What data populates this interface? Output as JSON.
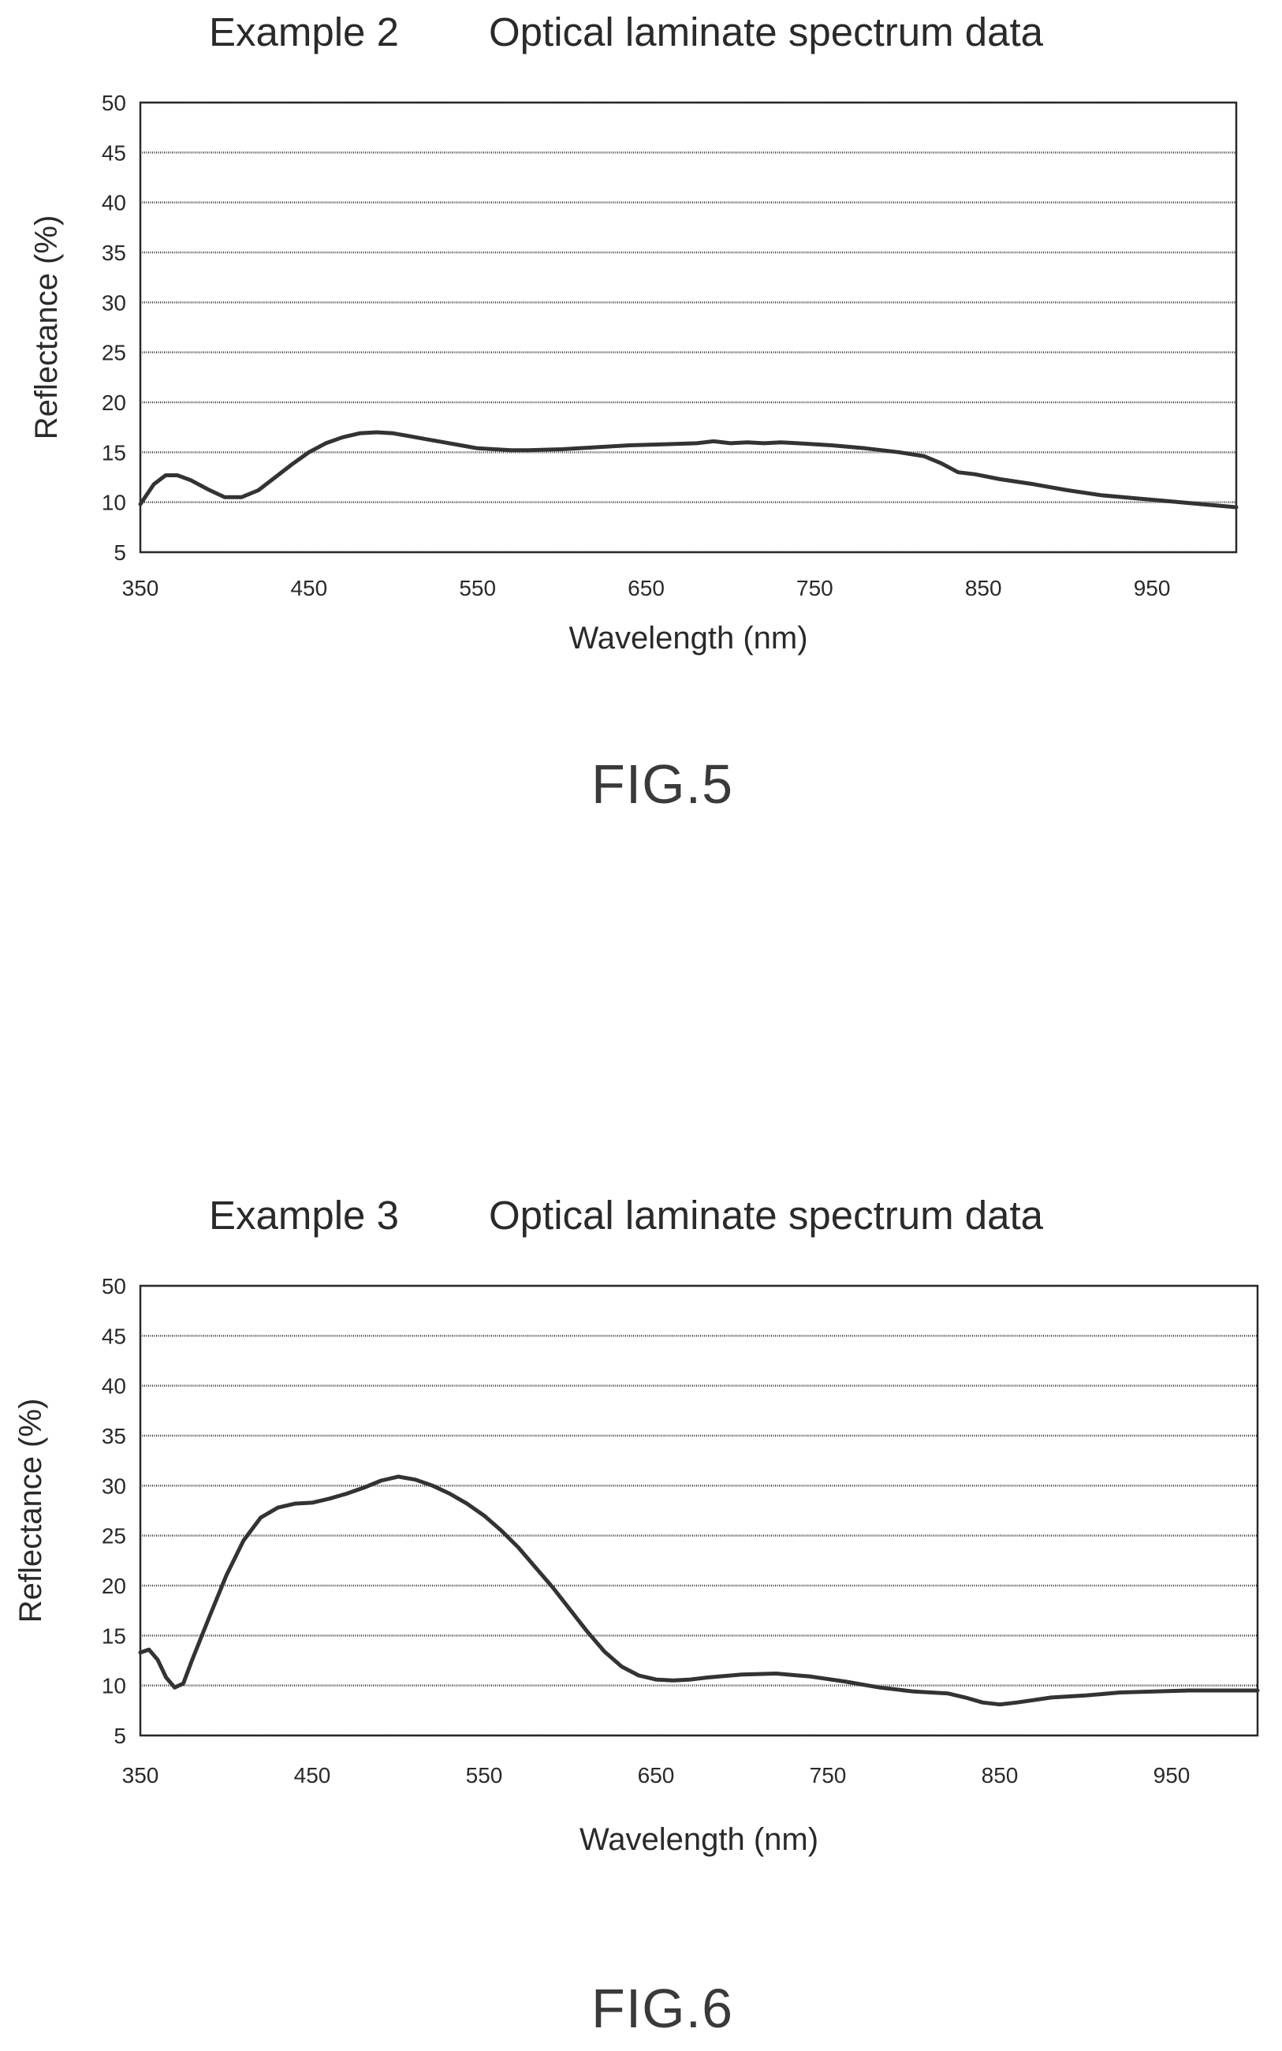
{
  "chart_data": [
    {
      "type": "line",
      "title_left": "Example 2",
      "title_right": "Optical laminate spectrum data",
      "xlabel": "Wavelength (nm)",
      "ylabel": "Reflectance (%)",
      "figure_label": "FIG.5",
      "xlim": [
        350,
        1000
      ],
      "ylim": [
        5,
        50
      ],
      "x_ticks": [
        350,
        450,
        550,
        650,
        750,
        850,
        950
      ],
      "y_ticks": [
        5,
        10,
        15,
        20,
        25,
        30,
        35,
        40,
        45,
        50
      ],
      "grid": true,
      "series": [
        {
          "x": [
            350,
            358,
            365,
            372,
            380,
            390,
            400,
            410,
            420,
            430,
            440,
            450,
            460,
            470,
            480,
            490,
            500,
            510,
            520,
            530,
            540,
            550,
            560,
            570,
            580,
            600,
            620,
            640,
            660,
            680,
            690,
            700,
            710,
            720,
            730,
            740,
            760,
            780,
            800,
            815,
            825,
            835,
            845,
            860,
            880,
            900,
            920,
            940,
            960,
            980,
            1000
          ],
          "y": [
            9.8,
            11.8,
            12.7,
            12.7,
            12.2,
            11.3,
            10.5,
            10.5,
            11.2,
            12.5,
            13.8,
            15.0,
            15.9,
            16.5,
            16.9,
            17.0,
            16.9,
            16.6,
            16.3,
            16.0,
            15.7,
            15.4,
            15.3,
            15.2,
            15.2,
            15.3,
            15.5,
            15.7,
            15.8,
            15.9,
            16.1,
            15.9,
            16.0,
            15.9,
            16.0,
            15.9,
            15.7,
            15.4,
            15.0,
            14.6,
            13.9,
            13.0,
            12.8,
            12.3,
            11.8,
            11.2,
            10.7,
            10.4,
            10.1,
            9.8,
            9.5
          ]
        }
      ]
    },
    {
      "type": "line",
      "title_left": "Example 3",
      "title_right": "Optical laminate spectrum data",
      "xlabel": "Wavelength (nm)",
      "ylabel": "Reflectance (%)",
      "figure_label": "FIG.6",
      "xlim": [
        350,
        1000
      ],
      "ylim": [
        5,
        50
      ],
      "x_ticks": [
        350,
        450,
        550,
        650,
        750,
        850,
        950
      ],
      "y_ticks": [
        5,
        10,
        15,
        20,
        25,
        30,
        35,
        40,
        45,
        50
      ],
      "grid": true,
      "series": [
        {
          "x": [
            350,
            355,
            360,
            365,
            370,
            375,
            380,
            390,
            400,
            410,
            420,
            430,
            440,
            450,
            460,
            470,
            480,
            490,
            500,
            510,
            520,
            530,
            540,
            550,
            560,
            570,
            580,
            590,
            600,
            610,
            620,
            630,
            640,
            650,
            660,
            670,
            680,
            700,
            720,
            740,
            760,
            780,
            800,
            820,
            830,
            840,
            850,
            860,
            880,
            900,
            920,
            940,
            960,
            980,
            1000
          ],
          "y": [
            13.3,
            13.6,
            12.6,
            10.8,
            9.8,
            10.2,
            12.5,
            16.8,
            21.0,
            24.5,
            26.8,
            27.8,
            28.2,
            28.3,
            28.7,
            29.2,
            29.8,
            30.5,
            30.9,
            30.6,
            30.0,
            29.2,
            28.2,
            27.0,
            25.5,
            23.8,
            21.8,
            19.8,
            17.6,
            15.4,
            13.4,
            11.9,
            11.0,
            10.6,
            10.5,
            10.6,
            10.8,
            11.1,
            11.2,
            10.9,
            10.4,
            9.8,
            9.4,
            9.2,
            8.8,
            8.3,
            8.1,
            8.3,
            8.8,
            9.0,
            9.3,
            9.4,
            9.5,
            9.5,
            9.5
          ]
        }
      ]
    }
  ]
}
